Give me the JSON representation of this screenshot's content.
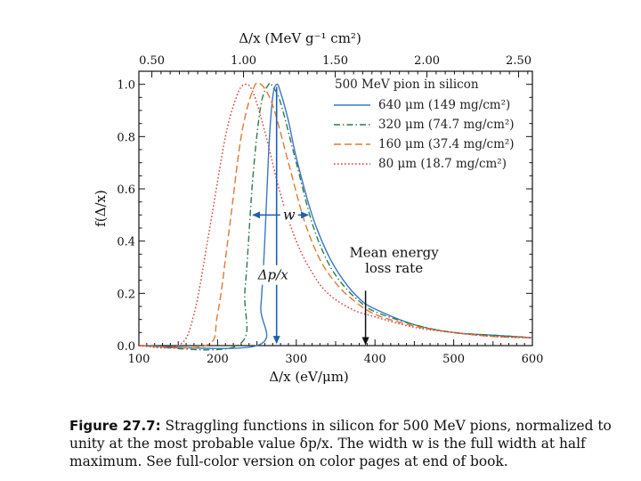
{
  "chart_data": {
    "type": "line",
    "title": "",
    "legend_title": "500 MeV pion in silicon",
    "x_bottom_label": "Δ/x  (eV/μm)",
    "x_top_label": "Δ/x   (MeV g⁻¹ cm²)",
    "ylabel": "f(Δ/x)",
    "xlim": [
      100,
      600
    ],
    "ylim": [
      0,
      1.05
    ],
    "x_bottom_ticks": [
      100,
      200,
      300,
      400,
      500,
      600
    ],
    "x_bottom_tick_labels": [
      "100",
      "200",
      "300",
      "400",
      "500",
      "600"
    ],
    "x_top_tick_values": [
      0.5,
      1.0,
      1.5,
      2.0,
      2.5
    ],
    "x_top_tick_labels": [
      "0.50",
      "1.00",
      "1.50",
      "2.00",
      "2.50"
    ],
    "y_ticks": [
      0.0,
      0.2,
      0.4,
      0.6,
      0.8,
      1.0
    ],
    "y_tick_labels": [
      "0.0",
      "0.2",
      "0.4",
      "0.6",
      "0.8",
      "1.0"
    ],
    "series": [
      {
        "name": "640 μm (149 mg/cm²)",
        "color": "#3a78c3",
        "dash": "solid",
        "x": [
          100,
          250,
          255,
          260,
          265,
          270,
          275,
          280,
          290,
          300,
          320,
          340,
          360,
          380,
          400,
          450,
          500,
          550,
          600
        ],
        "y": [
          0.0,
          0.0,
          0.15,
          0.4,
          0.75,
          0.95,
          1.0,
          0.97,
          0.86,
          0.72,
          0.5,
          0.35,
          0.25,
          0.18,
          0.14,
          0.08,
          0.05,
          0.04,
          0.03
        ]
      },
      {
        "name": "320 μm (74.7 mg/cm²)",
        "color": "#2f7a4c",
        "dash": "dashdot",
        "x": [
          100,
          225,
          235,
          245,
          255,
          265,
          270,
          280,
          300,
          320,
          340,
          360,
          380,
          400,
          450,
          500,
          550,
          600
        ],
        "y": [
          0.0,
          0.0,
          0.22,
          0.65,
          0.92,
          1.0,
          0.99,
          0.93,
          0.7,
          0.47,
          0.32,
          0.23,
          0.17,
          0.13,
          0.08,
          0.05,
          0.04,
          0.03
        ]
      },
      {
        "name": "160 μm (37.4 mg/cm²)",
        "color": "#e07a30",
        "dash": "dashed",
        "x": [
          100,
          185,
          200,
          215,
          230,
          245,
          255,
          270,
          290,
          310,
          330,
          350,
          370,
          400,
          450,
          500,
          550,
          600
        ],
        "y": [
          0.0,
          0.0,
          0.12,
          0.45,
          0.8,
          0.98,
          1.0,
          0.92,
          0.7,
          0.48,
          0.33,
          0.24,
          0.18,
          0.12,
          0.075,
          0.05,
          0.035,
          0.03
        ]
      },
      {
        "name": "80 μm (18.7 mg/cm²)",
        "color": "#d63a3a",
        "dash": "dotted",
        "x": [
          100,
          150,
          170,
          190,
          210,
          225,
          235,
          245,
          260,
          280,
          300,
          320,
          340,
          370,
          400,
          450,
          500,
          550,
          600
        ],
        "y": [
          0.0,
          0.0,
          0.12,
          0.45,
          0.8,
          0.96,
          1.0,
          0.97,
          0.82,
          0.58,
          0.4,
          0.28,
          0.2,
          0.14,
          0.11,
          0.07,
          0.05,
          0.035,
          0.03
        ]
      }
    ],
    "annotations": {
      "width_label": "w",
      "width_arrow_x_range": [
        245,
        315
      ],
      "width_arrow_y": 0.5,
      "most_probable_label": "Δp/x",
      "most_probable_x": 275,
      "mean_label_line1": "Mean energy",
      "mean_label_line2": "loss rate",
      "mean_x": 388
    }
  },
  "caption": {
    "figure_label": "Figure 27.7:",
    "text": " Straggling functions in silicon for 500 MeV pions, normalized to unity at the most probable value δp/x. The width w is the full width at half maximum. See full-color version on color pages at end of book."
  }
}
